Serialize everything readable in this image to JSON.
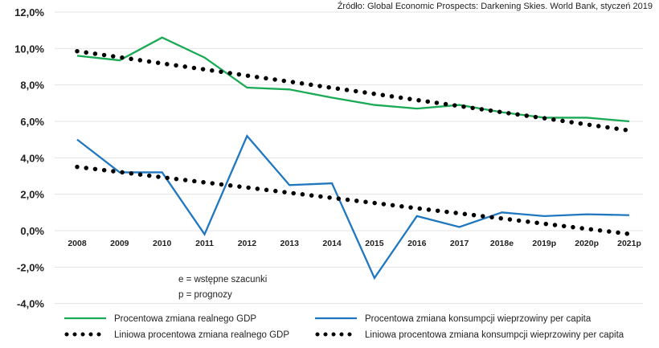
{
  "chart_data": {
    "type": "line",
    "source": "Źródło: Global Economic Prospects: Darkening Skies. World Bank, styczeń 2019",
    "categories": [
      "2008",
      "2009",
      "2010",
      "2011",
      "2012",
      "2013",
      "2014",
      "2015",
      "2016",
      "2017",
      "2018e",
      "2019p",
      "2020p",
      "2021p"
    ],
    "ylim": [
      -4,
      12
    ],
    "yticks": [
      "-4,0%",
      "-2,0%",
      "0,0%",
      "2,0%",
      "4,0%",
      "6,0%",
      "8,0%",
      "10,0%",
      "12,0%"
    ],
    "grid": true,
    "legend_position": "bottom",
    "notes": [
      "e = wstępne szacunki",
      "p = prognozy"
    ],
    "series": [
      {
        "name": "Procentowa zmiana realnego GDP",
        "color": "#1aaa55",
        "style": "solid",
        "values": [
          9.6,
          9.35,
          10.6,
          9.5,
          7.85,
          7.75,
          7.3,
          6.9,
          6.7,
          6.9,
          6.5,
          6.2,
          6.2,
          6.0
        ]
      },
      {
        "name": "Procentowa zmiana konsumpcji wieprzowiny per capita",
        "color": "#1f77c0",
        "style": "solid",
        "values": [
          5.0,
          3.2,
          3.2,
          -0.2,
          5.2,
          2.5,
          2.6,
          -2.6,
          0.8,
          0.2,
          1.0,
          0.8,
          0.9,
          0.85
        ]
      },
      {
        "name": "Liniowa procentowa zmiana realnego GDP",
        "color": "#000000",
        "style": "dotted",
        "values": [
          9.85,
          9.52,
          9.18,
          8.85,
          8.51,
          8.18,
          7.84,
          7.51,
          7.17,
          6.84,
          6.5,
          6.17,
          5.83,
          5.5
        ]
      },
      {
        "name": "Liniowa procentowa zmiana konsumpcji wieprzowiny per capita",
        "color": "#000000",
        "style": "dotted",
        "values": [
          3.5,
          3.22,
          2.93,
          2.65,
          2.37,
          2.08,
          1.8,
          1.52,
          1.23,
          0.95,
          0.67,
          0.38,
          0.1,
          -0.18
        ]
      }
    ]
  }
}
